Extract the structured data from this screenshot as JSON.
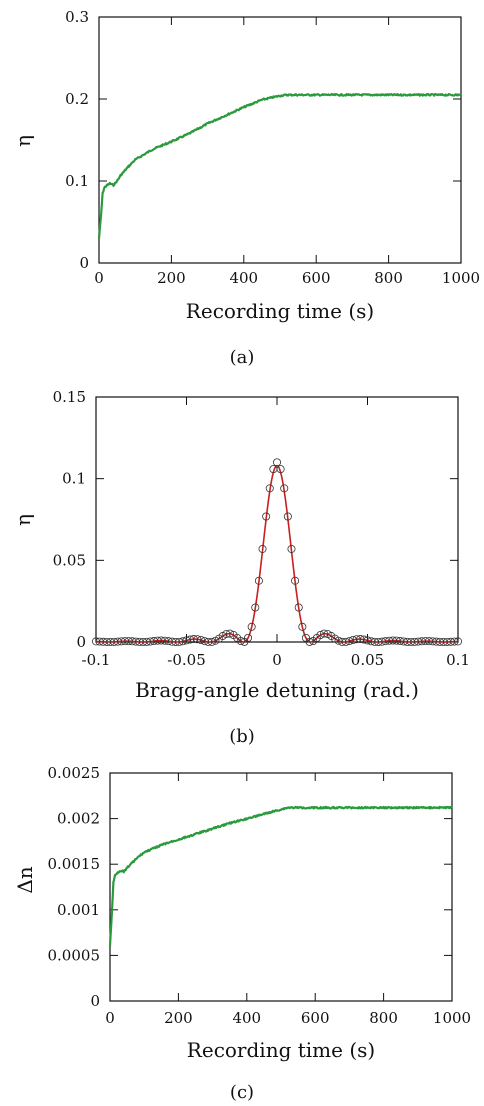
{
  "chart_data": [
    {
      "type": "line",
      "panel_label": "(a)",
      "xlabel": "Recording time (s)",
      "ylabel": "η",
      "xlim": [
        0,
        1000
      ],
      "ylim": [
        0,
        0.3
      ],
      "xticks": [
        0,
        200,
        400,
        600,
        800,
        1000
      ],
      "yticks": [
        0,
        0.1,
        0.2,
        0.3
      ],
      "xtick_labels": [
        "0",
        "200",
        "400",
        "600",
        "800",
        "1000"
      ],
      "ytick_labels": [
        "0",
        "0.1",
        "0.2",
        "0.3"
      ],
      "grid": false,
      "color": "#2a9a3c",
      "series": [
        {
          "x": [
            0,
            3,
            6,
            10,
            15,
            20,
            30,
            40,
            50,
            60,
            80,
            100,
            150,
            200,
            250,
            300,
            350,
            400,
            450,
            500,
            520,
            550,
            600,
            700,
            800,
            900,
            1000
          ],
          "values": [
            0.03,
            0.045,
            0.06,
            0.085,
            0.092,
            0.094,
            0.097,
            0.095,
            0.1,
            0.107,
            0.117,
            0.126,
            0.139,
            0.148,
            0.158,
            0.17,
            0.18,
            0.19,
            0.199,
            0.204,
            0.205,
            0.205,
            0.205,
            0.205,
            0.205,
            0.205,
            0.205
          ]
        }
      ]
    },
    {
      "type": "line",
      "panel_label": "(b)",
      "xlabel": "Bragg-angle detuning (rad.)",
      "ylabel": "η",
      "xlim": [
        -0.1,
        0.1
      ],
      "ylim": [
        0,
        0.15
      ],
      "xticks": [
        -0.1,
        -0.05,
        0,
        0.05,
        0.1
      ],
      "yticks": [
        0,
        0.05,
        0.1,
        0.15
      ],
      "xtick_labels": [
        "-0.1",
        "-0.05",
        "0",
        "0.05",
        "0.1"
      ],
      "ytick_labels": [
        "0",
        "0.05",
        "0.1",
        "0.15"
      ],
      "grid": false,
      "series": [
        {
          "style": "fit-line",
          "color": "#c8201e",
          "peak": 0.108,
          "width": 0.0185
        },
        {
          "style": "open-circles",
          "color": "#333333",
          "peak": 0.11,
          "width": 0.0185,
          "step": 0.002
        }
      ]
    },
    {
      "type": "line",
      "panel_label": "(c)",
      "xlabel": "Recording time (s)",
      "ylabel": "Δn",
      "xlim": [
        0,
        1000
      ],
      "ylim": [
        0,
        0.0025
      ],
      "xticks": [
        0,
        200,
        400,
        600,
        800,
        1000
      ],
      "yticks": [
        0,
        0.0005,
        0.001,
        0.0015,
        0.002,
        0.0025
      ],
      "xtick_labels": [
        "0",
        "200",
        "400",
        "600",
        "800",
        "1000"
      ],
      "ytick_labels": [
        "0",
        "0.0005",
        "0.001",
        "0.0015",
        "0.002",
        "0.0025"
      ],
      "grid": false,
      "color": "#2a9a3c",
      "series": [
        {
          "x": [
            0,
            3,
            6,
            10,
            15,
            20,
            30,
            40,
            50,
            60,
            80,
            100,
            150,
            200,
            250,
            300,
            350,
            400,
            450,
            500,
            520,
            550,
            600,
            700,
            800,
            900,
            1000
          ],
          "values": [
            0.0006,
            0.0008,
            0.001,
            0.0013,
            0.00138,
            0.0014,
            0.00143,
            0.00142,
            0.00146,
            0.0015,
            0.00157,
            0.00163,
            0.00171,
            0.00177,
            0.00183,
            0.00189,
            0.00195,
            0.002,
            0.00205,
            0.0021,
            0.00212,
            0.00212,
            0.00212,
            0.00212,
            0.00212,
            0.00212,
            0.00212
          ]
        }
      ]
    }
  ]
}
